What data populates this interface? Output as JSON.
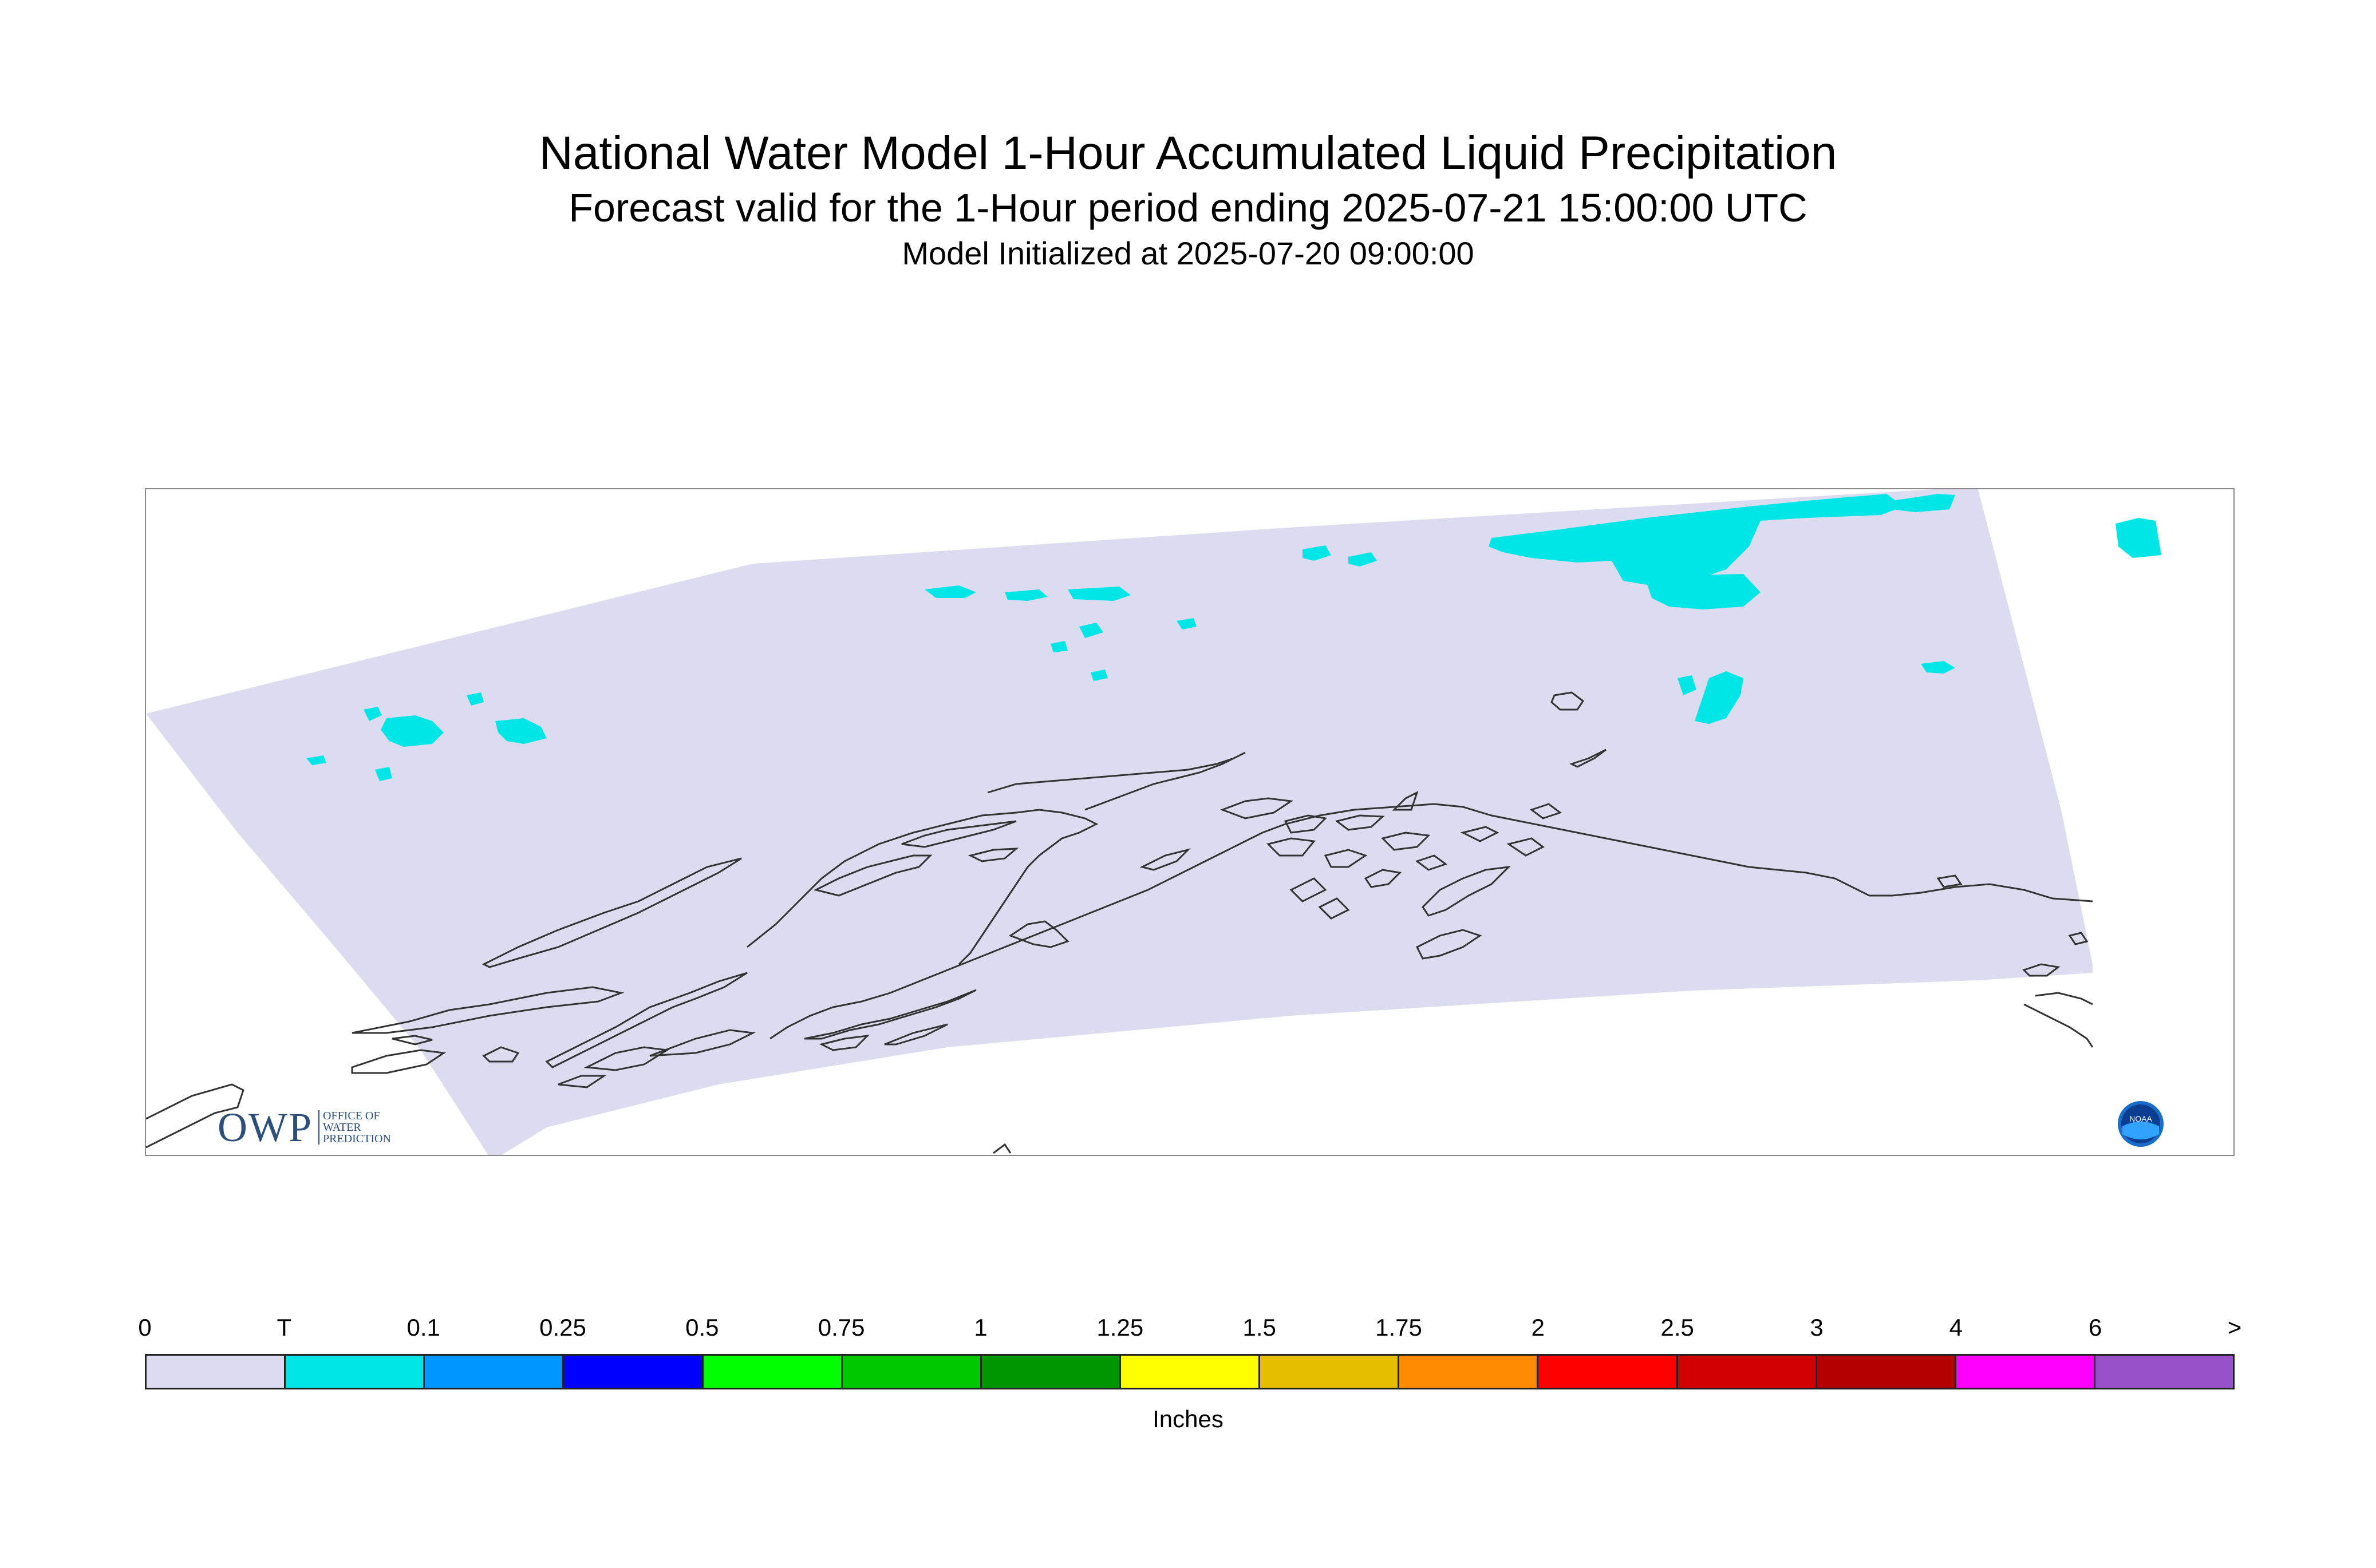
{
  "title": "National Water Model 1-Hour Accumulated Liquid Precipitation",
  "subtitle": "Forecast valid for the 1-Hour period ending 2025-07-21 15:00:00 UTC",
  "initialized": "Model Initialized at 2025-07-20 09:00:00",
  "map": {
    "region": "Alaska",
    "domain_fill_color": "#dcdcf0",
    "precip_fill_color": "#00e6e6",
    "coastline_color": "#333333"
  },
  "legend": {
    "units": "Inches",
    "tick_labels": [
      "0",
      "T",
      "0.1",
      "0.25",
      "0.5",
      "0.75",
      "1",
      "1.25",
      "1.5",
      "1.75",
      "2",
      "2.5",
      "3",
      "4",
      "6",
      ">"
    ],
    "colors": [
      "#dcdcf0",
      "#00e6e6",
      "#0096ff",
      "#0000ff",
      "#00ff00",
      "#00c800",
      "#009600",
      "#ffff00",
      "#e6be00",
      "#ff8c00",
      "#ff0000",
      "#d20000",
      "#b40000",
      "#ff00ff",
      "#9650c8"
    ]
  },
  "logos": {
    "owp_text": "OWP",
    "owp_subtext": [
      "OFFICE OF",
      "WATER",
      "PREDICTION"
    ],
    "noaa_text": "NOAA"
  }
}
